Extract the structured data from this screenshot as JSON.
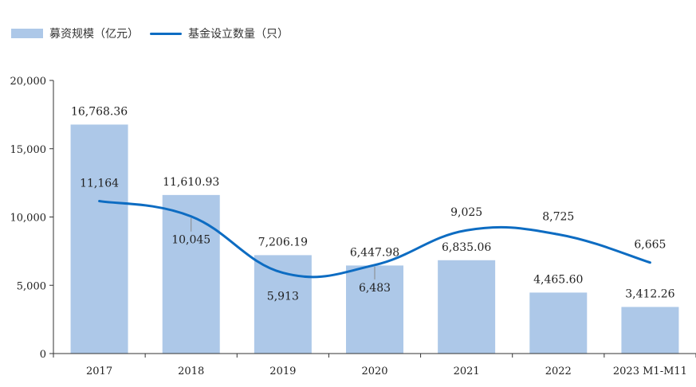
{
  "chart_data": {
    "type": "bar",
    "categories": [
      "2017",
      "2018",
      "2019",
      "2020",
      "2021",
      "2022",
      "2023 M1-M11"
    ],
    "series": [
      {
        "name": "募资规模（亿元）",
        "type": "bar",
        "values": [
          16768.36,
          11610.93,
          7206.19,
          6447.98,
          6835.06,
          4465.6,
          3412.26
        ],
        "labels": [
          "16,768.36",
          "11,610.93",
          "7,206.19",
          "6,447.98",
          "6,835.06",
          "4,465.60",
          "3,412.26"
        ]
      },
      {
        "name": "基金设立数量（只）",
        "type": "line",
        "values": [
          11164,
          10045,
          5913,
          6483,
          9025,
          8725,
          6665
        ],
        "labels": [
          "11,164",
          "10,045",
          "5,913",
          "6,483",
          "9,025",
          "8,725",
          "6,665"
        ]
      }
    ],
    "ylim": [
      0,
      20000
    ],
    "yticks": [
      "0",
      "5,000",
      "10,000",
      "15,000",
      "20,000"
    ],
    "legend_position": "top-left",
    "grid": false,
    "colors": {
      "bar": "#adc8e8",
      "line": "#0d6cc2"
    }
  }
}
